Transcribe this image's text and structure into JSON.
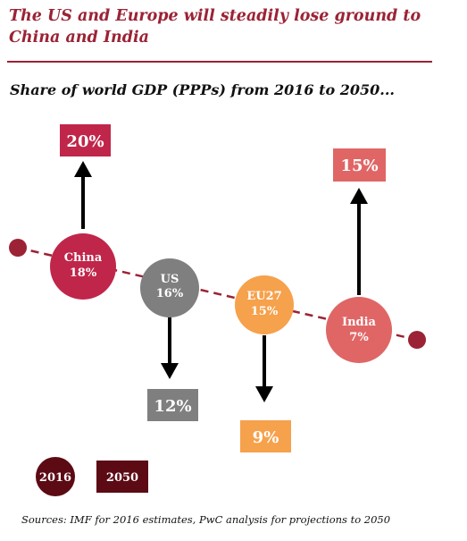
{
  "header": {
    "title": "The US and Europe will steadily lose ground to China and India",
    "subtitle": "Share of world GDP (PPPs) from 2016 to 2050..."
  },
  "economies": [
    {
      "name": "China",
      "share_2016": "18%",
      "share_2050": "20%",
      "color": "#c0264a",
      "direction": "up"
    },
    {
      "name": "US",
      "share_2016": "16%",
      "share_2050": "12%",
      "color": "#7f7f7f",
      "direction": "down"
    },
    {
      "name": "EU27",
      "share_2016": "15%",
      "share_2050": "9%",
      "color": "#f6a14c",
      "direction": "down"
    },
    {
      "name": "India",
      "share_2016": "7%",
      "share_2050": "15%",
      "color": "#e06666",
      "direction": "up"
    }
  ],
  "legend": {
    "year_2016": "2016",
    "year_2050": "2050",
    "color_2016": "#5c0a14",
    "color_2050": "#5c0a14"
  },
  "source": "Sources: IMF for 2016 estimates, PwC analysis for projections to 2050"
}
